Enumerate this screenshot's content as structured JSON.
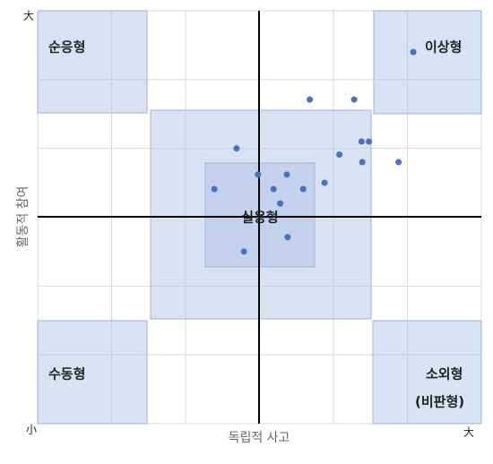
{
  "chart_data": {
    "type": "scatter",
    "x_label": "독립적 사고",
    "y_label": "활동적 참여",
    "x_max_label": "大",
    "y_max_label": "大",
    "origin_label": "小",
    "annotations": [
      "순응형",
      "이상형",
      "실용형",
      "수동형",
      "소외형",
      "(비판형)"
    ],
    "xlim": [
      0,
      6
    ],
    "ylim": [
      0,
      6
    ],
    "xticks": [
      0,
      1,
      2,
      3,
      4,
      5,
      6
    ],
    "yticks": [
      0,
      1,
      2,
      3,
      4,
      5,
      6
    ],
    "grid": true,
    "color": "#4472c4",
    "x": [
      5.08,
      3.68,
      4.28,
      4.38,
      4.48,
      2.69,
      4.08,
      4.39,
      4.88,
      2.98,
      3.37,
      3.88,
      2.39,
      3.19,
      3.59,
      3.28,
      3.38,
      2.79
    ],
    "y": [
      5.4,
      4.71,
      4.71,
      4.1,
      4.1,
      4.0,
      3.91,
      3.8,
      3.8,
      3.62,
      3.62,
      3.5,
      3.41,
      3.41,
      3.41,
      3.2,
      2.71,
      2.5
    ]
  }
}
